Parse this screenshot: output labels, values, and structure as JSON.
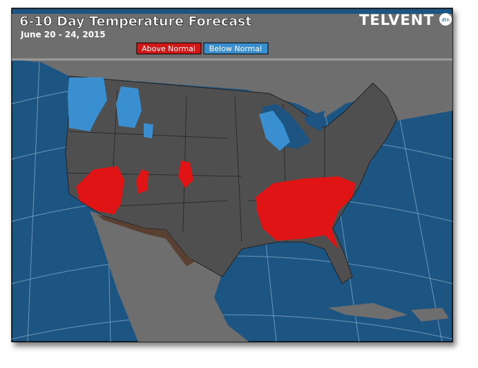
{
  "header": {
    "title": "6-10 Day Temperature Forecast",
    "subtitle": "June 20 - 24, 2015",
    "logo": "TELVENT",
    "logo_badge": "dtn"
  },
  "legend": {
    "items": [
      {
        "label": "Above Normal"
      },
      {
        "label": "Below Normal"
      }
    ]
  }
}
